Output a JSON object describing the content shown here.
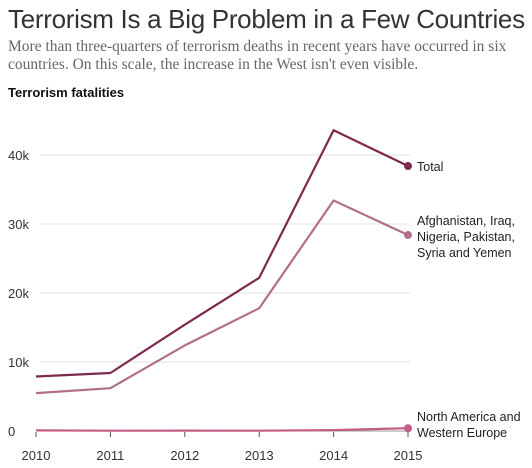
{
  "chart_data": {
    "type": "line",
    "title": "Terrorism Is a Big Problem in a Few Countries",
    "subtitle": "More than three-quarters of terrorism deaths in recent years have occurred in six countries. On this scale, the increase in the West isn't even visible.",
    "ylabel": "Terrorism fatalities",
    "xlabel": "",
    "x": [
      2010,
      2011,
      2012,
      2013,
      2014,
      2015
    ],
    "x_tick_labels": [
      "2010",
      "2011",
      "2012",
      "2013",
      "2014",
      "2015"
    ],
    "ylim": [
      0,
      45000
    ],
    "y_ticks": [
      0,
      10000,
      20000,
      30000,
      40000
    ],
    "y_tick_labels": [
      "0",
      "10k",
      "20k",
      "30k",
      "40k"
    ],
    "grid": true,
    "series": [
      {
        "name": "Total",
        "label_lines": [
          "Total"
        ],
        "color": "#7e2a4f",
        "values": [
          7900,
          8400,
          15400,
          22200,
          43600,
          38400
        ]
      },
      {
        "name": "Afghanistan, Iraq, Nigeria, Pakistan, Syria and Yemen",
        "label_lines": [
          "Afghanistan, Iraq,",
          "Nigeria,  Pakistan,",
          "Syria and Yemen"
        ],
        "color": "#b26e8a",
        "values": [
          5500,
          6200,
          12400,
          17800,
          33400,
          28400
        ]
      },
      {
        "name": "North America and Western Europe",
        "label_lines": [
          "North America and",
          "Western Europe"
        ],
        "color": "#c35d86",
        "values": [
          80,
          40,
          60,
          50,
          130,
          400
        ]
      }
    ]
  }
}
